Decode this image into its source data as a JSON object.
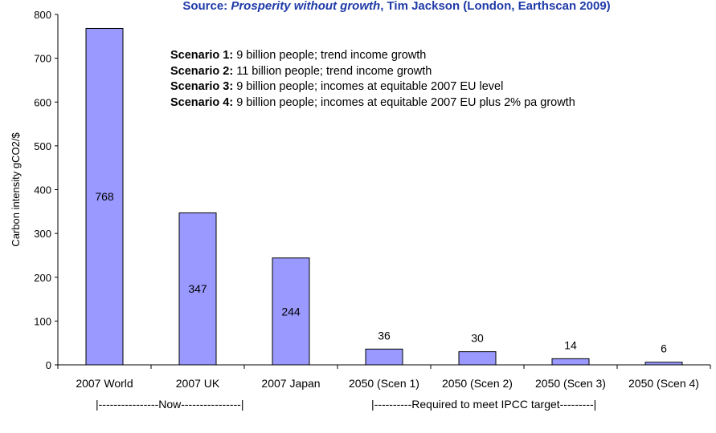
{
  "source": {
    "prefix": "Source: ",
    "book": "Prosperity without growth",
    "suffix": ", Tim Jackson (London, Earthscan 2009)"
  },
  "scenarios": [
    {
      "label": "Scenario 1:",
      "text": " 9 billion people; trend income growth"
    },
    {
      "label": "Scenario 2:",
      "text": " 11 billion people; trend income growth"
    },
    {
      "label": "Scenario 3:",
      "text": " 9 billion people; incomes at equitable 2007 EU level"
    },
    {
      "label": "Scenario 4:",
      "text": " 9 billion people; incomes at equitable 2007 EU plus 2% pa growth"
    }
  ],
  "groups": {
    "now": "|----------------Now----------------|",
    "target": "|----------Required to meet IPCC target---------|"
  },
  "chart_data": {
    "type": "bar",
    "title": "",
    "xlabel": "",
    "ylabel": "Carbon intensity gCO2/$",
    "ylim": [
      0,
      800
    ],
    "yticks": [
      0,
      100,
      200,
      300,
      400,
      500,
      600,
      700,
      800
    ],
    "categories": [
      "2007 World",
      "2007 UK",
      "2007 Japan",
      "2050 (Scen 1)",
      "2050 (Scen 2)",
      "2050 (Scen 3)",
      "2050 (Scen 4)"
    ],
    "values": [
      768,
      347,
      244,
      36,
      30,
      14,
      6
    ],
    "data_labels": [
      "768",
      "347",
      "244",
      "36",
      "30",
      "14",
      "6"
    ],
    "data_label_position": [
      "inside",
      "inside",
      "inside",
      "above",
      "above",
      "above",
      "above"
    ],
    "bar_color": "#9999ff",
    "grid": false
  }
}
